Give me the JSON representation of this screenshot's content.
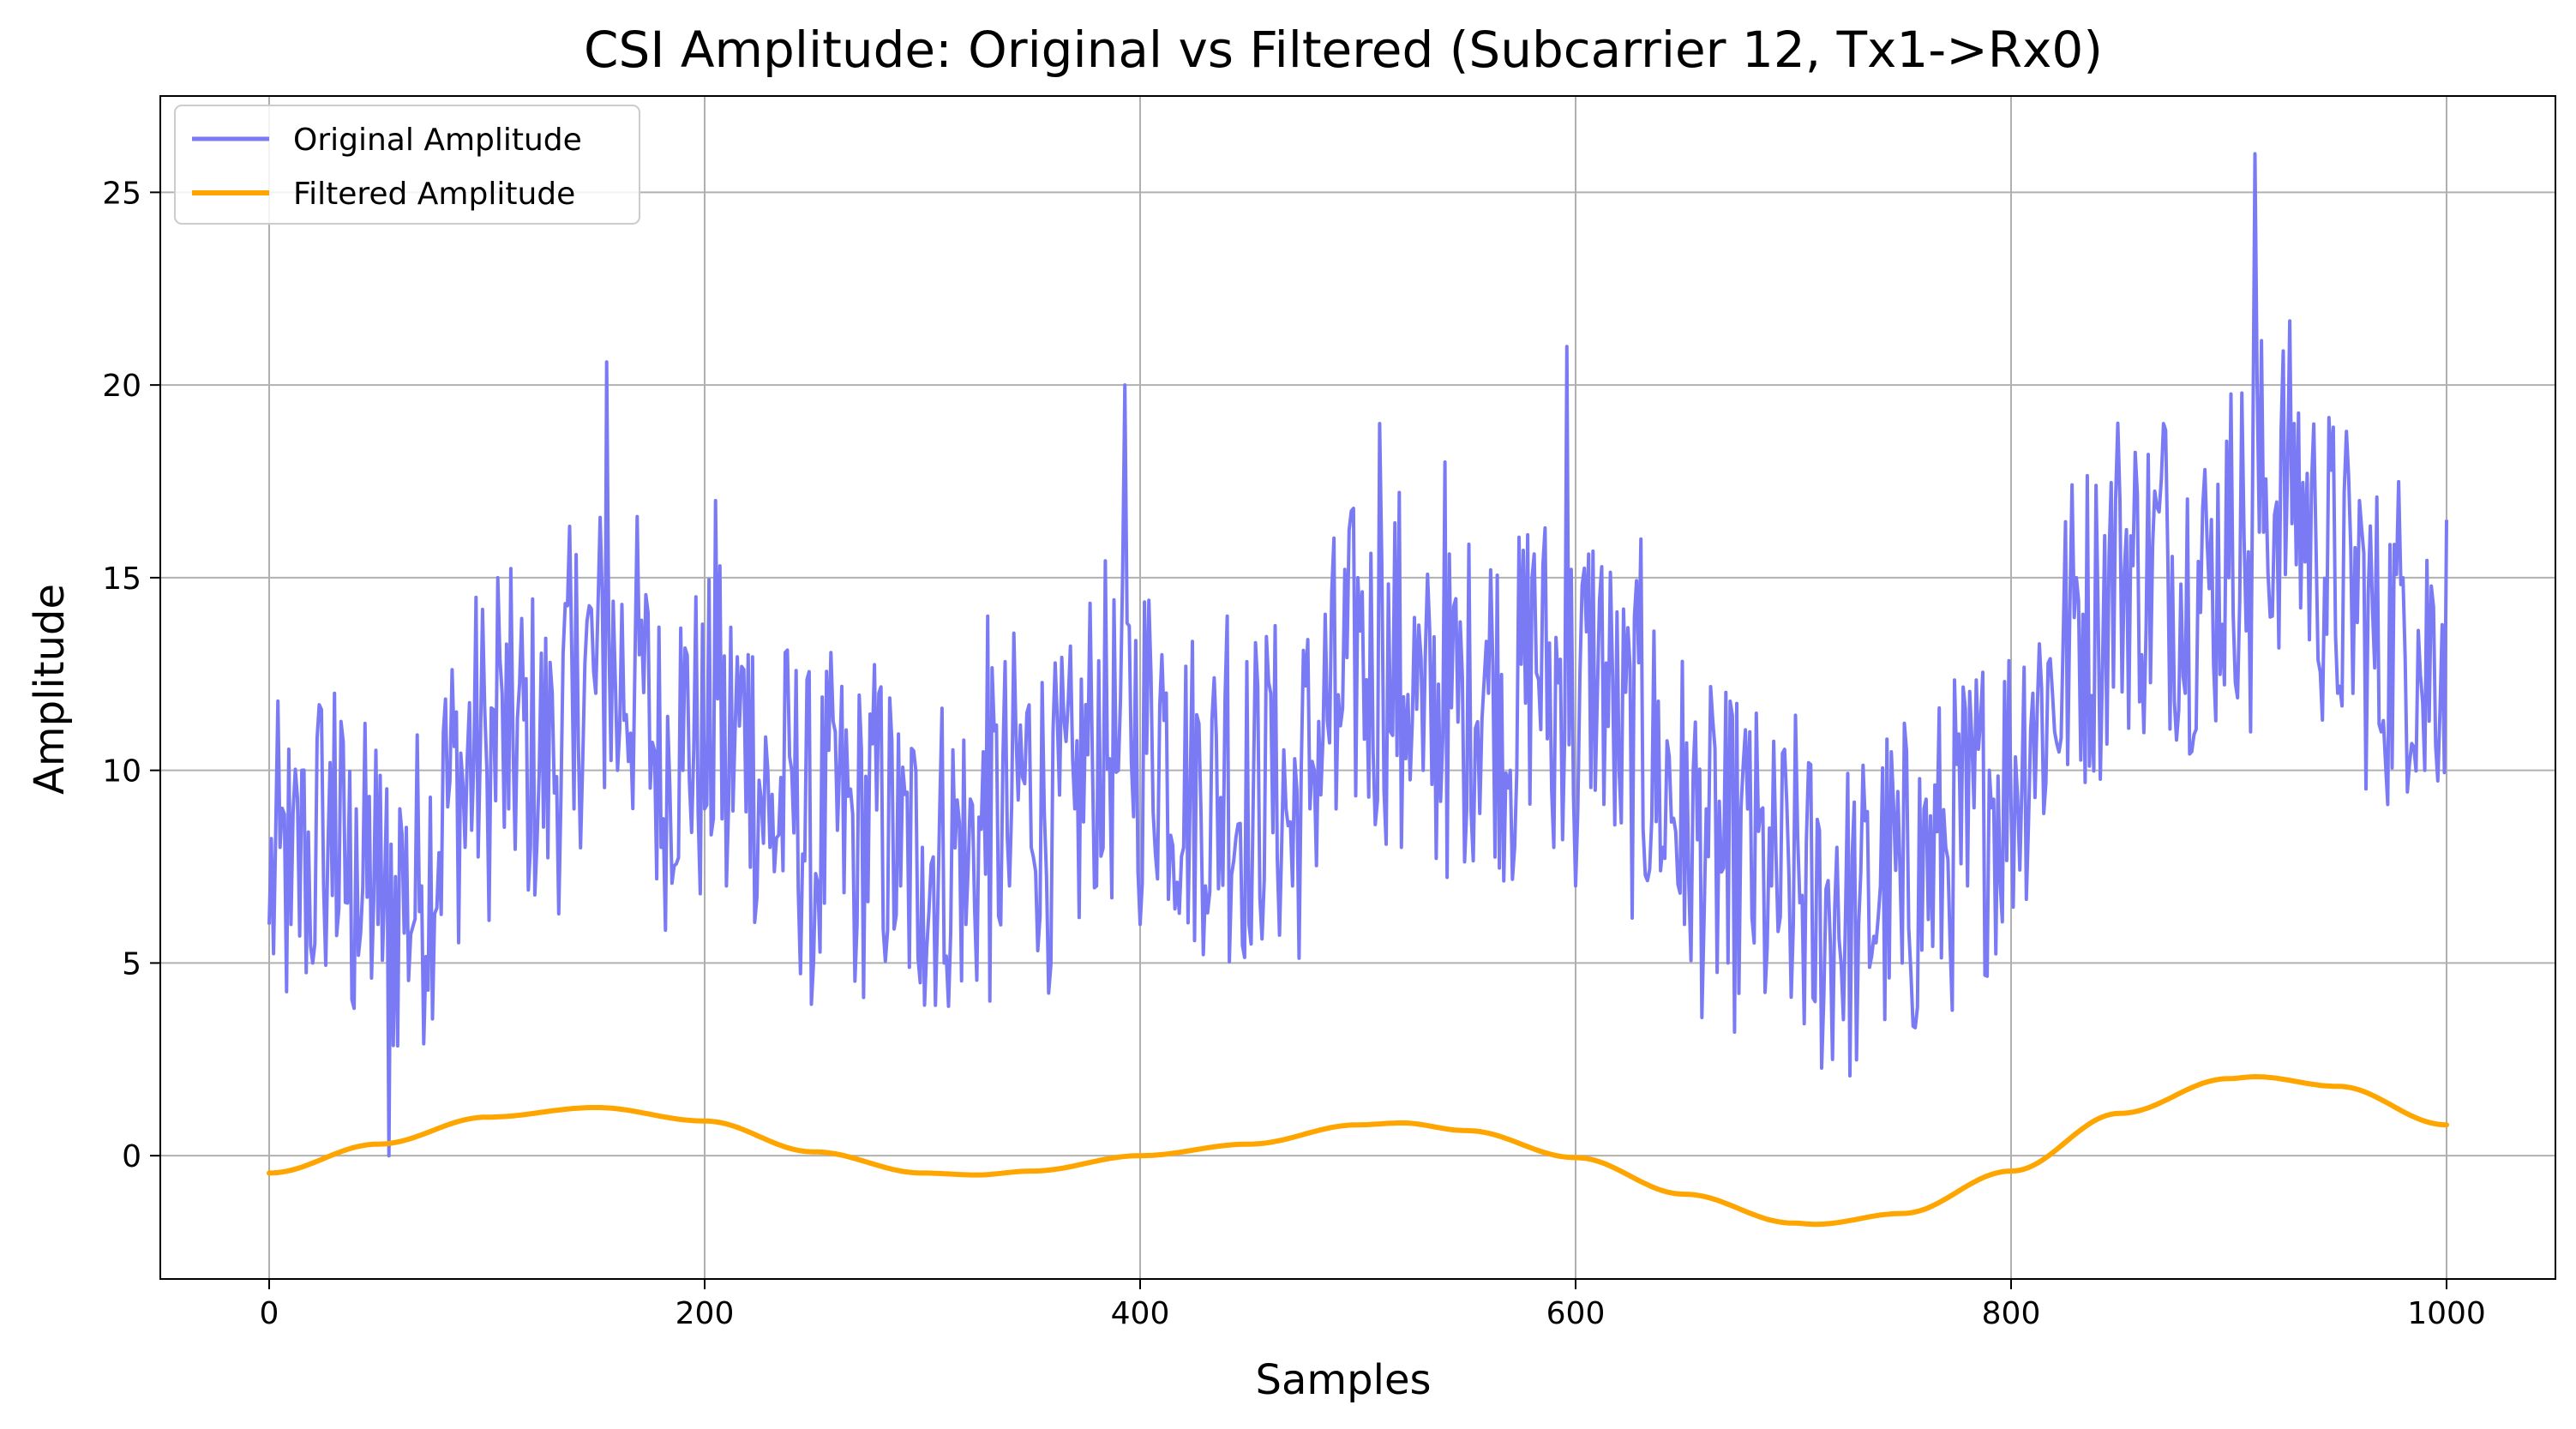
{
  "chart_data": {
    "type": "line",
    "title": "CSI Amplitude: Original vs Filtered (Subcarrier 12, Tx1->Rx0)",
    "xlabel": "Samples",
    "ylabel": "Amplitude",
    "xlim": [
      -50,
      1050
    ],
    "ylim": [
      -3.2,
      27.5
    ],
    "xticks": [
      0,
      200,
      400,
      600,
      800,
      1000
    ],
    "yticks": [
      0,
      5,
      10,
      15,
      20,
      25
    ],
    "grid": true,
    "legend_position": "upper-left",
    "series": [
      {
        "name": "Original Amplitude",
        "color": "#7a7af5",
        "style": "noisy line, 1000 samples",
        "x": [
          0,
          5,
          10,
          15,
          20,
          25,
          30,
          40,
          50,
          55,
          60,
          70,
          80,
          90,
          100,
          105,
          110,
          120,
          130,
          140,
          150,
          155,
          160,
          170,
          180,
          190,
          200,
          205,
          210,
          220,
          230,
          240,
          250,
          260,
          270,
          280,
          290,
          300,
          310,
          320,
          330,
          340,
          350,
          360,
          370,
          380,
          390,
          393,
          400,
          410,
          420,
          430,
          440,
          450,
          460,
          470,
          480,
          490,
          500,
          510,
          515,
          520,
          530,
          540,
          550,
          560,
          570,
          580,
          590,
          596,
          600,
          610,
          620,
          630,
          640,
          650,
          660,
          670,
          680,
          690,
          700,
          710,
          720,
          730,
          740,
          750,
          760,
          770,
          780,
          790,
          800,
          810,
          820,
          830,
          840,
          850,
          860,
          870,
          880,
          890,
          900,
          910,
          912,
          920,
          930,
          940,
          950,
          960,
          970,
          980,
          990,
          1000
        ],
        "values": [
          6,
          8,
          6,
          10,
          5,
          7,
          12,
          9,
          6,
          0,
          9,
          7,
          11,
          8,
          10,
          15,
          9,
          8,
          12,
          9,
          12,
          20.6,
          10,
          13,
          8,
          10,
          9,
          17,
          7,
          13,
          8,
          10,
          5,
          11,
          6,
          12,
          7,
          8,
          5,
          6,
          14,
          7,
          8,
          11,
          9,
          7,
          10,
          20,
          6,
          13,
          8,
          7,
          14,
          6,
          12,
          7,
          10,
          9,
          15,
          19,
          11,
          8,
          10,
          18,
          9,
          12,
          10,
          15,
          8,
          21,
          7,
          12,
          10,
          16,
          8,
          6,
          9,
          5,
          11,
          7,
          6,
          4,
          8,
          6,
          7,
          5,
          9,
          8,
          7,
          10,
          9,
          12,
          11,
          15,
          14,
          17,
          13,
          19,
          12,
          16,
          15,
          11,
          26,
          14,
          19,
          16,
          12,
          17,
          11,
          15,
          10,
          16.5
        ]
      },
      {
        "name": "Filtered Amplitude",
        "color": "#ffa500",
        "x": [
          0,
          50,
          100,
          150,
          200,
          250,
          300,
          325,
          350,
          400,
          450,
          500,
          520,
          550,
          600,
          650,
          700,
          710,
          750,
          800,
          850,
          900,
          912,
          950,
          1000
        ],
        "values": [
          -0.45,
          0.3,
          1.0,
          1.25,
          0.9,
          0.1,
          -0.45,
          -0.5,
          -0.4,
          0.0,
          0.3,
          0.8,
          0.85,
          0.65,
          -0.05,
          -1.0,
          -1.75,
          -1.78,
          -1.5,
          -0.4,
          1.1,
          2.0,
          2.05,
          1.8,
          0.8
        ]
      }
    ]
  }
}
